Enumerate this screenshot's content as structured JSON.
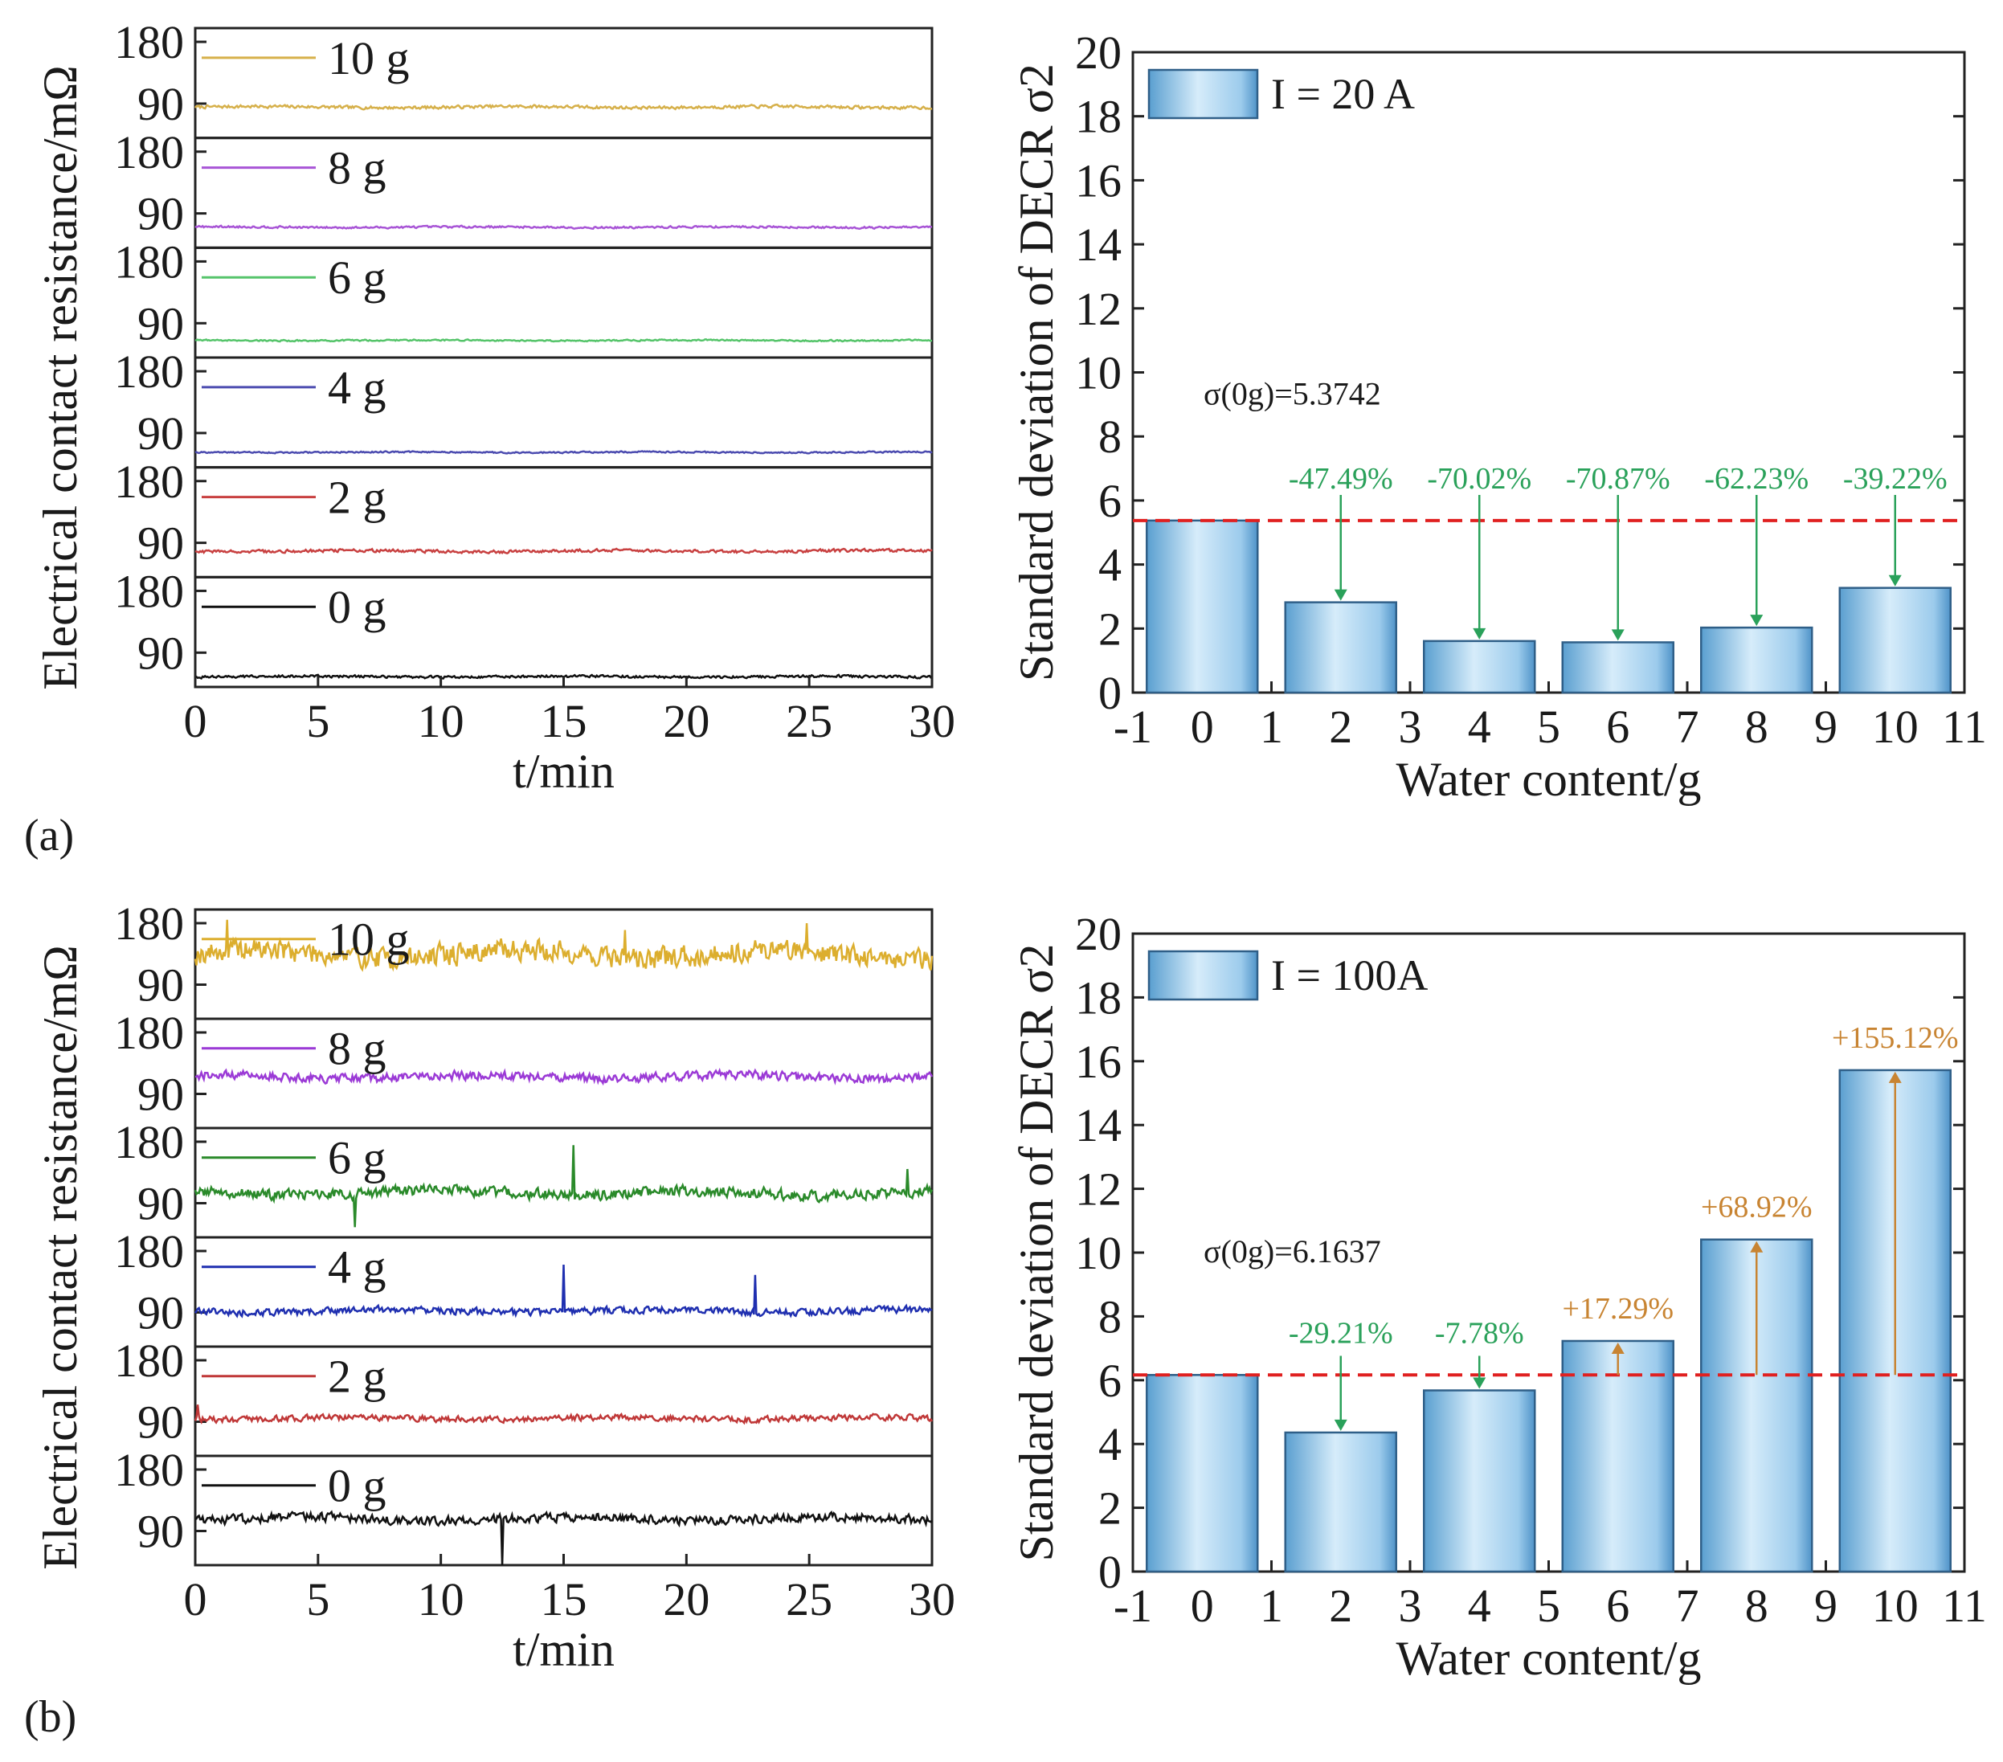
{
  "chart_data": [
    {
      "panel": "(a)",
      "type": "line",
      "title": "",
      "xlabel": "t/min",
      "ylabel": "Electrical contact resistance/mΩ",
      "xlim": [
        0,
        30
      ],
      "x_ticks": [
        "0",
        "5",
        "10",
        "15",
        "20",
        "25",
        "30"
      ],
      "y_ticks": [
        "90",
        "180"
      ],
      "series": [
        {
          "name": "10 g",
          "color": "#d6b04a",
          "baseline": 85,
          "noise": 3,
          "spikes": []
        },
        {
          "name": "8 g",
          "color": "#a855d6",
          "baseline": 70,
          "noise": 2,
          "spikes": []
        },
        {
          "name": "6 g",
          "color": "#55c46a",
          "baseline": 65,
          "noise": 1.5,
          "spikes": []
        },
        {
          "name": "4 g",
          "color": "#4c4cb0",
          "baseline": 62,
          "noise": 1.5,
          "spikes": []
        },
        {
          "name": "2 g",
          "color": "#c84040",
          "baseline": 78,
          "noise": 3,
          "spikes": []
        },
        {
          "name": "0 g",
          "color": "#111111",
          "baseline": 55,
          "noise": 2.5,
          "spikes": []
        }
      ]
    },
    {
      "panel": "",
      "type": "bar",
      "legend": "I = 20 A",
      "xlabel": "Water content/g",
      "ylabel": "Standard deviation of DECR σ2",
      "xlim": [
        -1,
        11
      ],
      "ylim": [
        0,
        20
      ],
      "x_ticks": [
        "-1",
        "0",
        "1",
        "2",
        "3",
        "4",
        "5",
        "6",
        "7",
        "8",
        "9",
        "10",
        "11"
      ],
      "y_ticks": [
        "0",
        "2",
        "4",
        "6",
        "8",
        "10",
        "12",
        "14",
        "16",
        "18",
        "20"
      ],
      "categories": [
        0,
        2,
        4,
        6,
        8,
        10
      ],
      "values": [
        5.3742,
        2.82,
        1.61,
        1.57,
        2.03,
        3.27
      ],
      "reference": 5.3742,
      "reference_label": "σ(0g)=5.3742",
      "changes": [
        "",
        "-47.49%",
        "-70.02%",
        "-70.87%",
        "-62.23%",
        "-39.22%"
      ]
    },
    {
      "panel": "(b)",
      "type": "line",
      "title": "",
      "xlabel": "t/min",
      "ylabel": "Electrical contact resistance/mΩ",
      "xlim": [
        0,
        30
      ],
      "x_ticks": [
        "0",
        "5",
        "10",
        "15",
        "20",
        "25",
        "30"
      ],
      "y_ticks": [
        "90",
        "180"
      ],
      "series": [
        {
          "name": "10 g",
          "color": "#dcae2e",
          "baseline": 135,
          "noise": 22,
          "spikes": [
            [
              1.3,
              185
            ],
            [
              17.5,
              170
            ],
            [
              24.9,
              180
            ]
          ]
        },
        {
          "name": "8 g",
          "color": "#9b3ad6",
          "baseline": 115,
          "noise": 9,
          "spikes": []
        },
        {
          "name": "6 g",
          "color": "#2a8a2a",
          "baseline": 105,
          "noise": 11,
          "spikes": [
            [
              15.4,
              175
            ],
            [
              6.5,
              55
            ],
            [
              29,
              140
            ]
          ]
        },
        {
          "name": "4 g",
          "color": "#1f2fb0",
          "baseline": 92,
          "noise": 7,
          "spikes": [
            [
              15,
              160
            ],
            [
              22.8,
              145
            ]
          ]
        },
        {
          "name": "2 g",
          "color": "#c03838",
          "baseline": 95,
          "noise": 6,
          "spikes": [
            [
              0.1,
              115
            ]
          ]
        },
        {
          "name": "0 g",
          "color": "#111111",
          "baseline": 108,
          "noise": 9,
          "spikes": [
            [
              12.5,
              135
            ],
            [
              12.52,
              40
            ]
          ]
        }
      ]
    },
    {
      "panel": "",
      "type": "bar",
      "legend": "I = 100A",
      "xlabel": "Water content/g",
      "ylabel": "Standard deviation of DECR σ2",
      "xlim": [
        -1,
        11
      ],
      "ylim": [
        0,
        20
      ],
      "x_ticks": [
        "-1",
        "0",
        "1",
        "2",
        "3",
        "4",
        "5",
        "6",
        "7",
        "8",
        "9",
        "10",
        "11"
      ],
      "y_ticks": [
        "0",
        "2",
        "4",
        "6",
        "8",
        "10",
        "12",
        "14",
        "16",
        "18",
        "20"
      ],
      "categories": [
        0,
        2,
        4,
        6,
        8,
        10
      ],
      "values": [
        6.1637,
        4.36,
        5.68,
        7.23,
        10.41,
        15.72
      ],
      "reference": 6.1637,
      "reference_label": "σ(0g)=6.1637",
      "changes": [
        "",
        "-29.21%",
        "-7.78%",
        "+17.29%",
        "+68.92%",
        "+155.12%"
      ]
    }
  ],
  "colors": {
    "decrease": "#2aa15a",
    "increase": "#c88432",
    "reference": "#e02020",
    "bar_dark": "#5fa6d3",
    "bar_light": "#cde7f8"
  }
}
